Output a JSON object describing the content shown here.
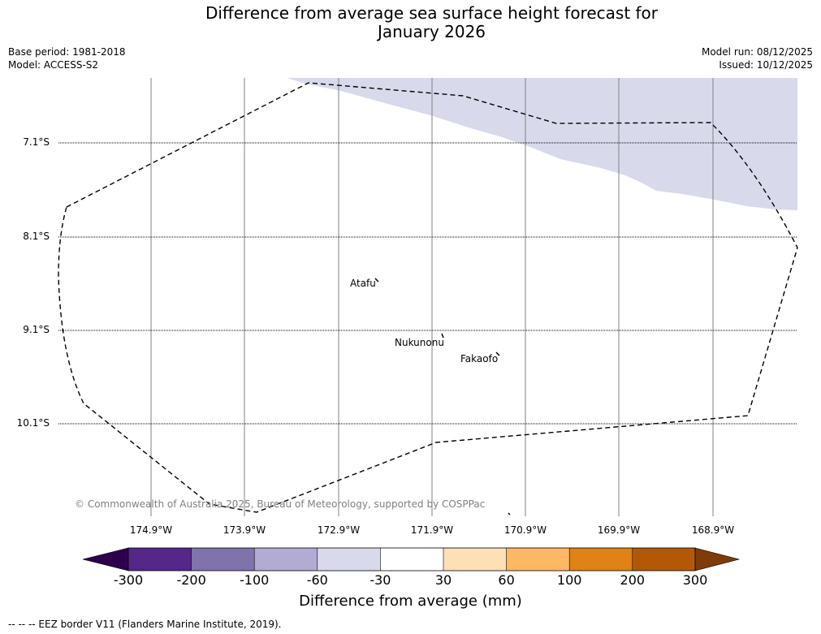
{
  "title_line1": "Difference from average sea surface height forecast for",
  "title_line2": "January 2026",
  "meta_left": {
    "base_period": "Base period: 1981-2018",
    "model": "Model: ACCESS-S2"
  },
  "meta_right": {
    "model_run": "Model run: 08/12/2025",
    "issued": "Issued: 10/12/2025"
  },
  "latitude_labels": [
    "7.1°S",
    "8.1°S",
    "9.1°S",
    "10.1°S"
  ],
  "longitude_labels": [
    "174.9°W",
    "173.9°W",
    "172.9°W",
    "171.9°W",
    "170.9°W",
    "169.9°W",
    "168.9°W"
  ],
  "places": [
    "Atafu",
    "Nukunonu",
    "Fakaofo"
  ],
  "copyright": "© Commonwealth of Australia 2025, Bureau of Meteorology, supported by COSPPac",
  "colorbar": {
    "ticks": [
      "-300",
      "-200",
      "-100",
      "-60",
      "-30",
      "30",
      "60",
      "100",
      "200",
      "300"
    ],
    "colors": [
      "#2d004b",
      "#542788",
      "#8073ac",
      "#b2abd2",
      "#d8daeb",
      "#ffffff",
      "#fee0b6",
      "#fdb863",
      "#e08214",
      "#b35806",
      "#7f3b08"
    ],
    "label": "Difference from average (mm)"
  },
  "legend_note": "--  --  -- EEZ border V11 (Flanders Marine Institute, 2019).",
  "colors": {
    "anomaly_fill": "#d8daeb",
    "gridline": "#808080"
  }
}
